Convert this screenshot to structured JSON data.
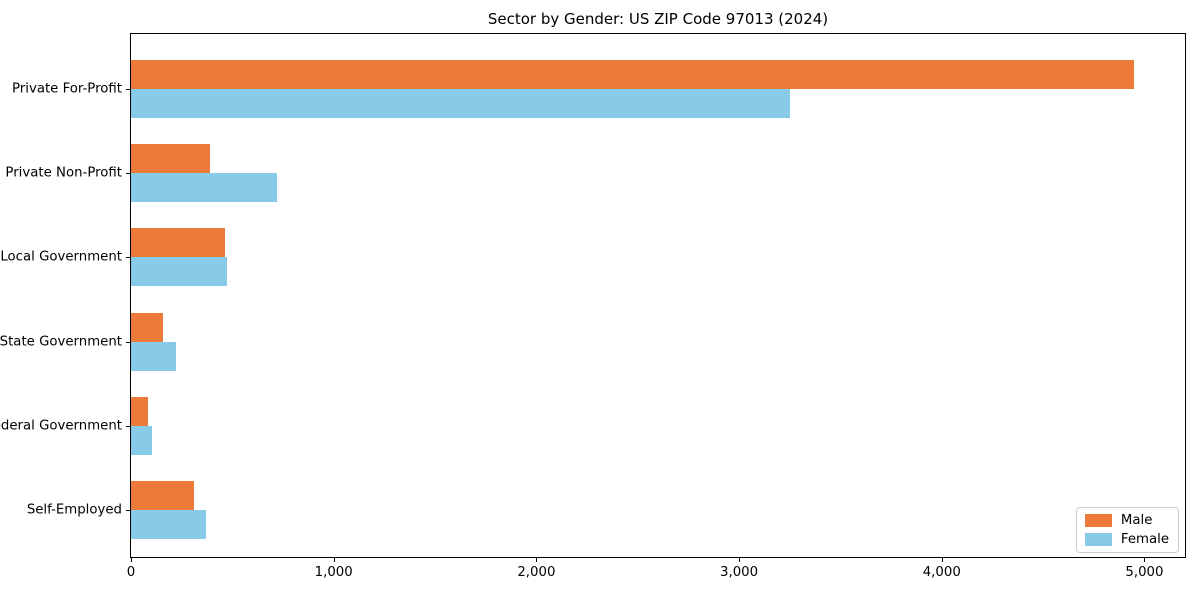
{
  "title": "Sector by Gender: US ZIP Code 97013 (2024)",
  "chart_data": {
    "type": "bar",
    "orientation": "horizontal",
    "title": "Sector by Gender: US ZIP Code 97013 (2024)",
    "categories": [
      "Private For-Profit",
      "Private Non-Profit",
      "Local Government",
      "State Government",
      "Federal Government",
      "Self-Employed"
    ],
    "series": [
      {
        "name": "Male",
        "color": "#EC7B3A",
        "values": [
          4950,
          390,
          465,
          160,
          85,
          310
        ]
      },
      {
        "name": "Female",
        "color": "#87CBE8",
        "values": [
          3250,
          720,
          472,
          220,
          105,
          370
        ]
      }
    ],
    "xlabel": "",
    "ylabel": "",
    "xlim": [
      0,
      5200
    ],
    "xticks": [
      0,
      1000,
      2000,
      3000,
      4000,
      5000
    ],
    "xtick_labels": [
      "0",
      "1,000",
      "2,000",
      "3,000",
      "4,000",
      "5,000"
    ],
    "legend_position": "lower right",
    "grid": false,
    "spine_color": "#000000",
    "legend_border_color": "#cccccc"
  }
}
